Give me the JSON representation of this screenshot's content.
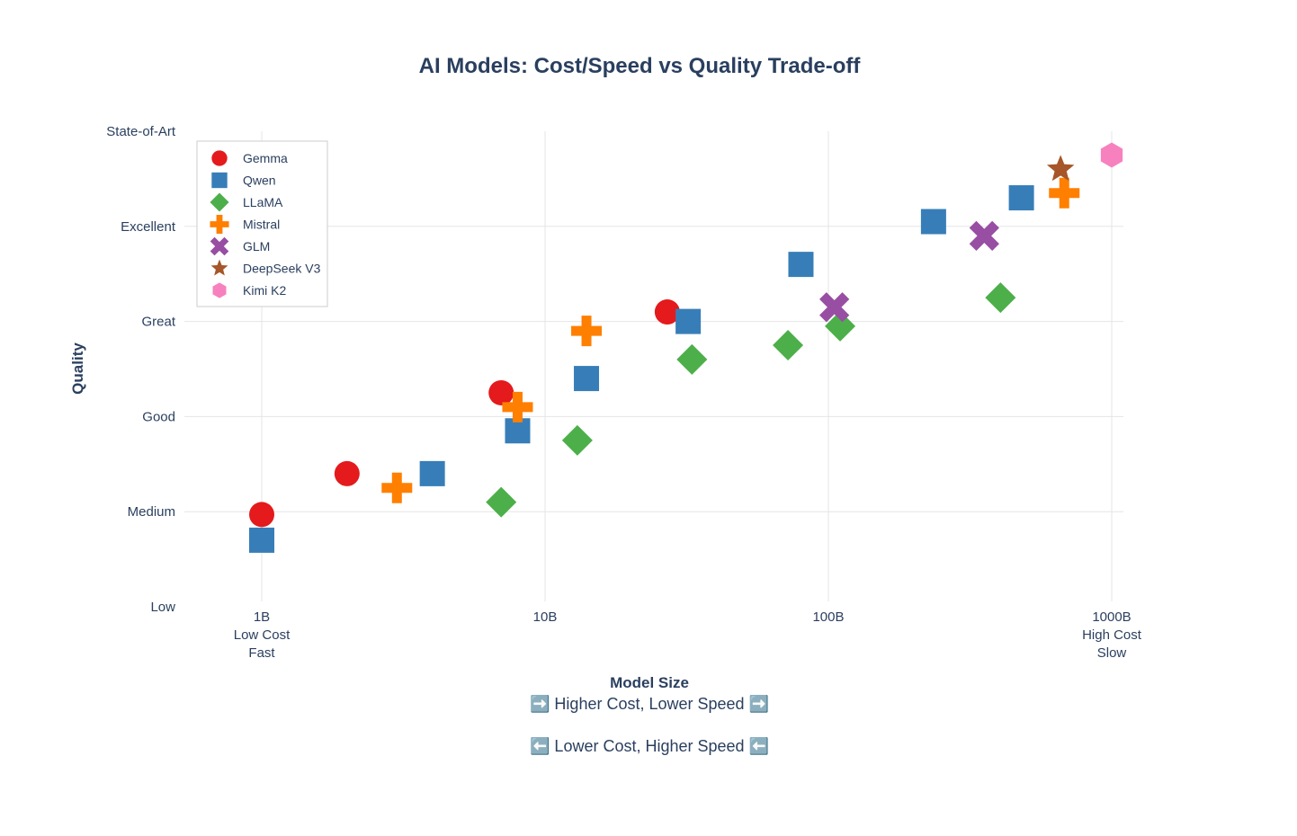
{
  "chart_data": {
    "type": "scatter",
    "title": "AI Models: Cost/Speed vs Quality Trade-off",
    "xlabel": "Model Size",
    "ylabel": "Quality",
    "x_scale": "log",
    "xlim": [
      0.6,
      1600
    ],
    "ylim": [
      0,
      5
    ],
    "x_ticks": [
      {
        "value": 1,
        "label": "1B",
        "sub1": "Low Cost",
        "sub2": "Fast"
      },
      {
        "value": 10,
        "label": "10B",
        "sub1": "",
        "sub2": ""
      },
      {
        "value": 100,
        "label": "100B",
        "sub1": "",
        "sub2": ""
      },
      {
        "value": 1000,
        "label": "1000B",
        "sub1": "High Cost",
        "sub2": "Slow"
      }
    ],
    "y_ticks": [
      {
        "value": 0,
        "label": "Low"
      },
      {
        "value": 1,
        "label": "Medium"
      },
      {
        "value": 2,
        "label": "Good"
      },
      {
        "value": 3,
        "label": "Great"
      },
      {
        "value": 4,
        "label": "Excellent"
      },
      {
        "value": 5,
        "label": "State-of-Art"
      }
    ],
    "annotations": [
      "➡️ Higher Cost, Lower Speed ➡️",
      "⬅️ Lower Cost, Higher Speed ⬅️"
    ],
    "legend_position": "top-left",
    "series": [
      {
        "name": "Gemma",
        "symbol": "circle",
        "color": "#e41a1c",
        "points": [
          [
            1,
            0.97
          ],
          [
            2,
            1.4
          ],
          [
            7,
            2.25
          ],
          [
            27,
            3.1
          ]
        ]
      },
      {
        "name": "Qwen",
        "symbol": "square",
        "color": "#377eb8",
        "points": [
          [
            1,
            0.7
          ],
          [
            4,
            1.4
          ],
          [
            8,
            1.85
          ],
          [
            14,
            2.4
          ],
          [
            32,
            3.0
          ],
          [
            80,
            3.6
          ],
          [
            235,
            4.05
          ],
          [
            480,
            4.3
          ]
        ]
      },
      {
        "name": "LLaMA",
        "symbol": "diamond",
        "color": "#4daf4a",
        "points": [
          [
            7,
            1.1
          ],
          [
            13,
            1.75
          ],
          [
            33,
            2.6
          ],
          [
            72,
            2.75
          ],
          [
            110,
            2.95
          ],
          [
            405,
            3.25
          ]
        ]
      },
      {
        "name": "Mistral",
        "symbol": "cross",
        "color": "#ff7f00",
        "points": [
          [
            3,
            1.25
          ],
          [
            8,
            2.1
          ],
          [
            14,
            2.9
          ],
          [
            680,
            4.35
          ]
        ]
      },
      {
        "name": "GLM",
        "symbol": "x",
        "color": "#984ea3",
        "points": [
          [
            105,
            3.15
          ],
          [
            355,
            3.9
          ]
        ]
      },
      {
        "name": "DeepSeek V3",
        "symbol": "star",
        "color": "#a65628",
        "points": [
          [
            660,
            4.6
          ]
        ]
      },
      {
        "name": "Kimi K2",
        "symbol": "hexagon",
        "color": "#f781bf",
        "points": [
          [
            1000,
            4.75
          ]
        ]
      }
    ]
  }
}
